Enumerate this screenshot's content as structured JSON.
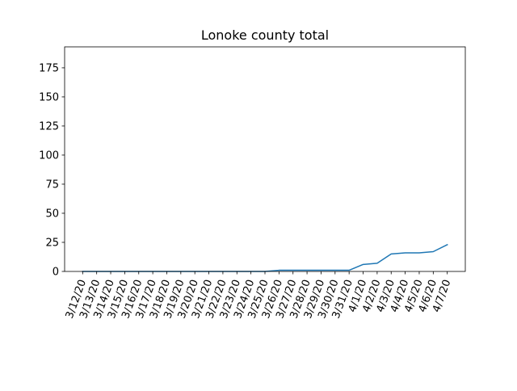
{
  "chart_data": {
    "type": "line",
    "title": "Lonoke county total",
    "xlabel": "",
    "ylabel": "",
    "x": [
      "3/12/20",
      "3/13/20",
      "3/14/20",
      "3/15/20",
      "3/16/20",
      "3/17/20",
      "3/18/20",
      "3/19/20",
      "3/20/20",
      "3/21/20",
      "3/22/20",
      "3/23/20",
      "3/24/20",
      "3/25/20",
      "3/26/20",
      "3/27/20",
      "3/28/20",
      "3/29/20",
      "3/30/20",
      "3/31/20",
      "4/1/20",
      "4/2/20",
      "4/3/20",
      "4/4/20",
      "4/5/20",
      "4/6/20",
      "4/7/20"
    ],
    "series": [
      {
        "name": "",
        "color": "#1f77b4",
        "values": [
          0,
          0,
          0,
          0,
          0,
          0,
          0,
          0,
          0,
          0,
          0,
          0,
          0,
          0,
          1,
          1,
          1,
          1,
          1,
          1,
          6,
          7,
          15,
          16,
          16,
          17,
          23
        ]
      }
    ],
    "yticks": [
      0,
      25,
      50,
      75,
      100,
      125,
      150,
      175
    ],
    "ylim": [
      0,
      193
    ],
    "grid": false,
    "legend": "none"
  }
}
